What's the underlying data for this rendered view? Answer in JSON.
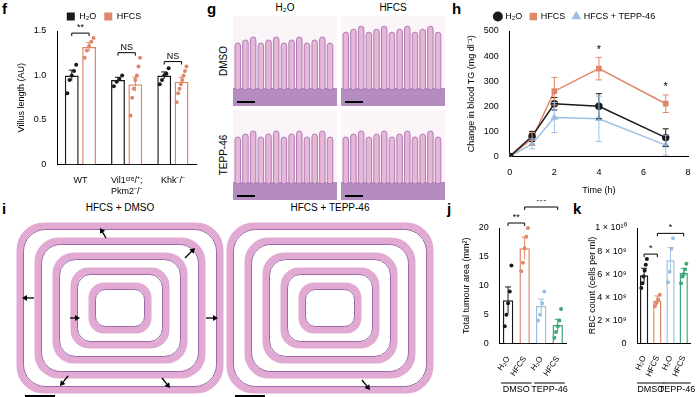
{
  "chart_data": [
    {
      "panel": "f",
      "type": "bar",
      "y_label": "Villus length (AU)",
      "categories": [
        "WT",
        "Vil1ᶜʳᵉ/⁺;\nPkm2⁻/⁻",
        "Khk⁻/⁻"
      ],
      "series": [
        {
          "name": "H₂O",
          "color": "#1a1a1a",
          "values": [
            1.0,
            0.95,
            1.0
          ],
          "errors": [
            0.06,
            0.03,
            0.04
          ],
          "points": [
            [
              0.8,
              0.95,
              1.0,
              1.05,
              1.12
            ],
            [
              0.88,
              0.93,
              0.96,
              1.0
            ],
            [
              0.9,
              0.95,
              1.0,
              1.02,
              1.08
            ]
          ]
        },
        {
          "name": "HFCS",
          "color": "#e0876a",
          "values": [
            1.32,
            0.9,
            0.93
          ],
          "errors": [
            0.05,
            0.08,
            0.05
          ],
          "points": [
            [
              1.2,
              1.28,
              1.33,
              1.38,
              1.42
            ],
            [
              0.55,
              0.75,
              0.85,
              0.95,
              1.0,
              1.1,
              1.2
            ],
            [
              0.7,
              0.8,
              0.85,
              0.9,
              0.95,
              1.0,
              1.05,
              1.1
            ]
          ]
        }
      ],
      "ylim": [
        0,
        1.5
      ],
      "yticks": [
        0,
        0.5,
        {
          "value": 1,
          "label": "1.0"
        },
        1.5
      ],
      "grid": false,
      "legend": "top",
      "annotations": [
        {
          "text": "**",
          "category": "WT"
        },
        {
          "text": "NS",
          "category": "Vil1ᶜʳᵉ/⁺;\nPkm2⁻/⁻"
        },
        {
          "text": "NS",
          "category": "Khk⁻/⁻"
        }
      ]
    },
    {
      "panel": "h",
      "type": "line",
      "x_label": "Time (h)",
      "y_label": "Change in blood TG (mg dl⁻¹)",
      "x": [
        0,
        1,
        2,
        4,
        7
      ],
      "series": [
        {
          "name": "H₂O",
          "color": "#1a1a1a",
          "marker": "circle",
          "line_style": "solid",
          "values": [
            0,
            80,
            210,
            200,
            75
          ],
          "errors": [
            0,
            20,
            25,
            50,
            35
          ]
        },
        {
          "name": "HFCS",
          "color": "#e0876a",
          "marker": "square",
          "line_style": "solid",
          "values": [
            0,
            70,
            260,
            350,
            210
          ],
          "errors": [
            0,
            25,
            55,
            45,
            35
          ]
        },
        {
          "name": "HFCS + TEPP-46",
          "color": "#9dbfe3",
          "marker": "triangle",
          "line_style": "solid",
          "values": [
            0,
            50,
            155,
            150,
            45
          ],
          "errors": [
            0,
            20,
            60,
            90,
            40
          ]
        }
      ],
      "xlim": [
        0,
        8
      ],
      "xticks": [
        0,
        2,
        4,
        6,
        8
      ],
      "ylim": [
        0,
        500
      ],
      "yticks": [
        0,
        100,
        200,
        300,
        400,
        500
      ],
      "grid": false,
      "legend": "top",
      "annotations": [
        {
          "text": "*",
          "x": 4
        },
        {
          "text": "*",
          "x": 7
        }
      ]
    },
    {
      "panel": "j",
      "type": "bar",
      "y_label": "Total tumour area (mm²)",
      "categories": [
        "H₂O",
        "HFCS",
        "H₂O",
        "HFCS"
      ],
      "group_labels": [
        "DMSO",
        "TEPP-46"
      ],
      "values": [
        7.5,
        16.5,
        6.5,
        3.2
      ],
      "errors": [
        2.3,
        1.9,
        1.2,
        1.0
      ],
      "points": [
        [
          3,
          5,
          7,
          9,
          13.5
        ],
        [
          12.5,
          14,
          16.5,
          18.5,
          20
        ],
        [
          4,
          5,
          7,
          9
        ],
        [
          1,
          2,
          3,
          4,
          6
        ]
      ],
      "colors": [
        "#1a1a1a",
        "#e0876a",
        "#9dbfe3",
        "#3fa877"
      ],
      "ylim": [
        0,
        20
      ],
      "yticks": [
        0,
        5,
        10,
        15,
        20
      ],
      "grid": false,
      "annotations": [
        {
          "text": "**",
          "from": 0,
          "to": 1
        },
        {
          "text": "***",
          "from": 1,
          "to": 3
        }
      ]
    },
    {
      "panel": "k",
      "type": "bar",
      "y_label": "RBC count (cells per ml)",
      "categories": [
        "H₂O",
        "HFCS",
        "H₂O",
        "HFCS"
      ],
      "group_labels": [
        "DMSO",
        "TEPP-46"
      ],
      "values": [
        5900000000.0,
        3700000000.0,
        7200000000.0,
        6100000000.0
      ],
      "errors": [
        600000000.0,
        400000000.0,
        1100000000.0,
        400000000.0
      ],
      "points": [
        [
          4800000000.0,
          5200000000.0,
          5800000000.0,
          6300000000.0,
          6800000000.0,
          7300000000.0
        ],
        [
          3200000000.0,
          3500000000.0,
          3800000000.0,
          4200000000.0
        ],
        [
          5300000000.0,
          6200000000.0,
          8200000000.0,
          9100000000.0
        ],
        [
          5200000000.0,
          5800000000.0,
          6000000000.0,
          6400000000.0,
          6900000000.0
        ]
      ],
      "colors": [
        "#1a1a1a",
        "#e0876a",
        "#9dbfe3",
        "#3fa877"
      ],
      "ylim": [
        0,
        10000000000.0
      ],
      "yticks": [
        0,
        {
          "value": 2000000000.0,
          "label": "2 × 10⁹"
        },
        {
          "value": 4000000000.0,
          "label": "4 × 10⁹"
        },
        {
          "value": 6000000000.0,
          "label": "6 × 10⁹"
        },
        {
          "value": 8000000000.0,
          "label": "8 × 10⁹"
        },
        {
          "value": 10000000000.0,
          "label": "1 × 10¹⁰"
        }
      ],
      "grid": false,
      "annotations": [
        {
          "text": "*",
          "from": 0,
          "to": 1
        },
        {
          "text": "*",
          "from": 1,
          "to": 3
        }
      ]
    }
  ],
  "images": [
    {
      "panel": "g",
      "columns": [
        "H₂O",
        "HFCS"
      ],
      "rows": [
        "DMSO",
        "TEPP-46"
      ]
    },
    {
      "panel": "i",
      "titles": [
        "HFCS + DMSO",
        "HFCS + TEPP-46"
      ]
    }
  ]
}
